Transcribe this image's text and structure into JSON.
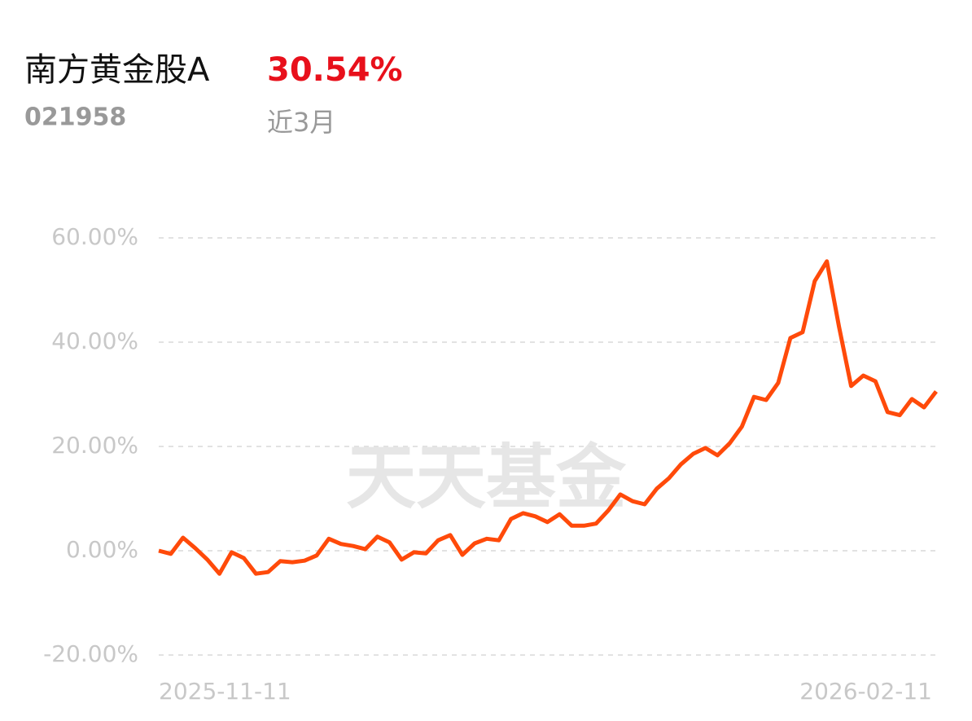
{
  "header": {
    "name": "南方黄金股A",
    "return": "30.54%",
    "code": "021958",
    "period": "近3月"
  },
  "watermark": "天天基金",
  "chart_data": {
    "type": "line",
    "categories": [
      "2025-11-11",
      null,
      null,
      null,
      null,
      null,
      null,
      null,
      null,
      null,
      null,
      null,
      null,
      null,
      null,
      null,
      null,
      null,
      null,
      null,
      null,
      null,
      null,
      null,
      null,
      null,
      null,
      null,
      null,
      null,
      null,
      null,
      null,
      null,
      null,
      null,
      null,
      null,
      null,
      null,
      null,
      null,
      null,
      null,
      null,
      null,
      null,
      null,
      null,
      null,
      null,
      null,
      null,
      null,
      null,
      null,
      null,
      null,
      null,
      null,
      null,
      null,
      null,
      null,
      "2026-02-11"
    ],
    "series": [
      {
        "name": "南方黄金股A",
        "color": "#ff4a0a",
        "values": [
          0,
          -0.6,
          2.5,
          0.5,
          -1.7,
          -4.4,
          -0.3,
          -1.4,
          -4.4,
          -4.1,
          -2.0,
          -2.2,
          -1.9,
          -0.9,
          2.3,
          1.3,
          0.9,
          0.3,
          2.7,
          1.6,
          -1.7,
          -0.3,
          -0.5,
          2.0,
          3.0,
          -0.8,
          1.4,
          2.3,
          2.0,
          6.1,
          7.2,
          6.6,
          5.5,
          7.0,
          4.8,
          4.8,
          5.2,
          7.7,
          10.8,
          9.5,
          8.9,
          11.9,
          13.9,
          16.6,
          18.6,
          19.7,
          18.3,
          20.6,
          23.8,
          29.5,
          28.9,
          32.2,
          40.8,
          41.9,
          51.7,
          55.5,
          43.0,
          31.6,
          33.6,
          32.5,
          26.6,
          26.0,
          29.1,
          27.5,
          30.54
        ]
      }
    ],
    "ylim": [
      -20,
      60
    ],
    "yticks": [
      {
        "value": -20,
        "label": "-20.00%"
      },
      {
        "value": 0,
        "label": "0.00%"
      },
      {
        "value": 20,
        "label": "20.00%"
      },
      {
        "value": 40,
        "label": "40.00%"
      },
      {
        "value": 60,
        "label": "60.00%"
      }
    ],
    "grid": true
  }
}
